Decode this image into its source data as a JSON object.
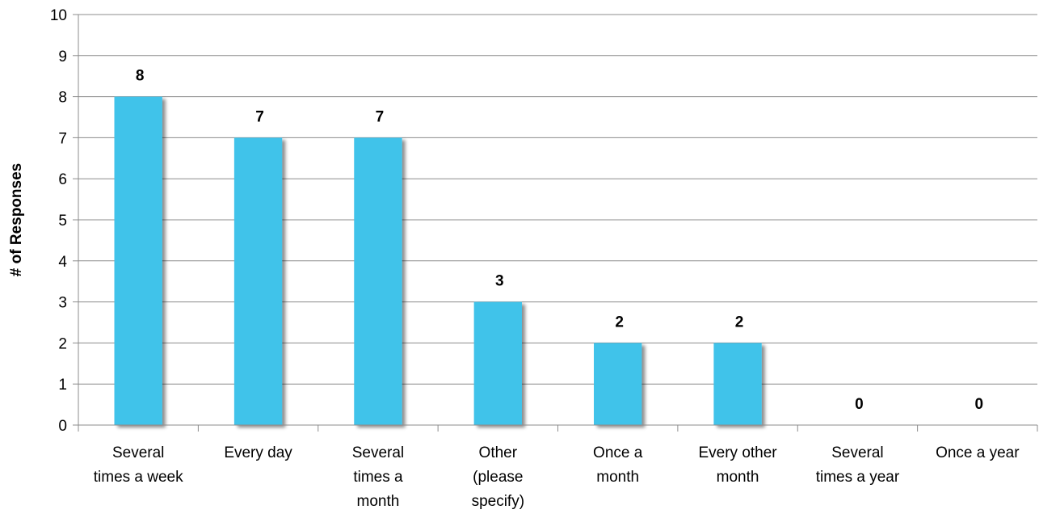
{
  "chart_data": {
    "type": "bar",
    "title": "",
    "xlabel": "",
    "ylabel": "# of Responses",
    "ylim": [
      0,
      10
    ],
    "yticks": [
      0,
      1,
      2,
      3,
      4,
      5,
      6,
      7,
      8,
      9,
      10
    ],
    "grid": true,
    "legend": "none",
    "categories": [
      [
        "Several",
        "times a week"
      ],
      [
        "Every day"
      ],
      [
        "Several",
        "times a",
        "month"
      ],
      [
        "Other",
        "(please",
        "specify)"
      ],
      [
        "Once a",
        "month"
      ],
      [
        "Every other",
        "month"
      ],
      [
        "Several",
        "times a year"
      ],
      [
        "Once a year"
      ]
    ],
    "values": [
      8,
      7,
      7,
      3,
      2,
      2,
      0,
      0
    ],
    "data_labels": [
      "8",
      "7",
      "7",
      "3",
      "2",
      "2",
      "0",
      "0"
    ],
    "colors": {
      "bar": "#41c3ea",
      "grid": "#8c8c8c",
      "axis": "#8c8c8c"
    }
  }
}
